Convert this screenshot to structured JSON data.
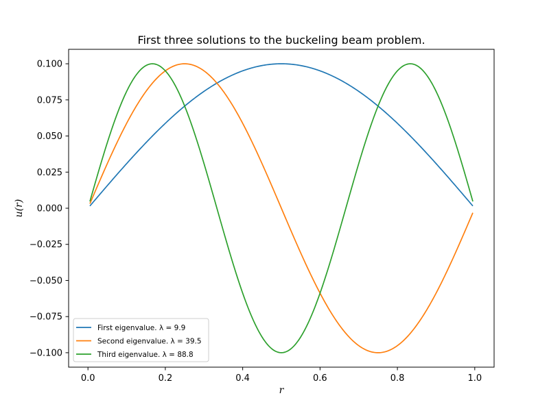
{
  "chart_data": {
    "type": "line",
    "title": "First three solutions to the buckeling beam problem.",
    "xlabel": "r",
    "ylabel": "u(r)",
    "xlim": [
      -0.05,
      1.05
    ],
    "ylim": [
      -0.11,
      0.11
    ],
    "x_ticks": [
      0.0,
      0.2,
      0.4,
      0.6,
      0.8,
      1.0
    ],
    "x_tick_labels": [
      "0.0",
      "0.2",
      "0.4",
      "0.6",
      "0.8",
      "1.0"
    ],
    "y_ticks": [
      0.1,
      0.075,
      0.05,
      0.025,
      0.0,
      -0.025,
      -0.05,
      -0.075,
      -0.1
    ],
    "y_tick_labels": [
      "0.100",
      "0.075",
      "0.050",
      "0.025",
      "0.000",
      "−0.025",
      "−0.050",
      "−0.075",
      "−0.100"
    ],
    "grid": false,
    "legend_position": "lower-left",
    "x_range": [
      0.005,
      0.995
    ],
    "series": [
      {
        "name": "First eigenvalue. λ = 9.9",
        "color": "#1f77b4",
        "mode": 1,
        "amplitude": 0.1
      },
      {
        "name": "Second eigenvalue. λ = 39.5",
        "color": "#ff7f0e",
        "mode": 2,
        "amplitude": 0.1
      },
      {
        "name": "Third eigenvalue. λ = 88.8",
        "color": "#2ca02c",
        "mode": 3,
        "amplitude": 0.1
      }
    ]
  }
}
